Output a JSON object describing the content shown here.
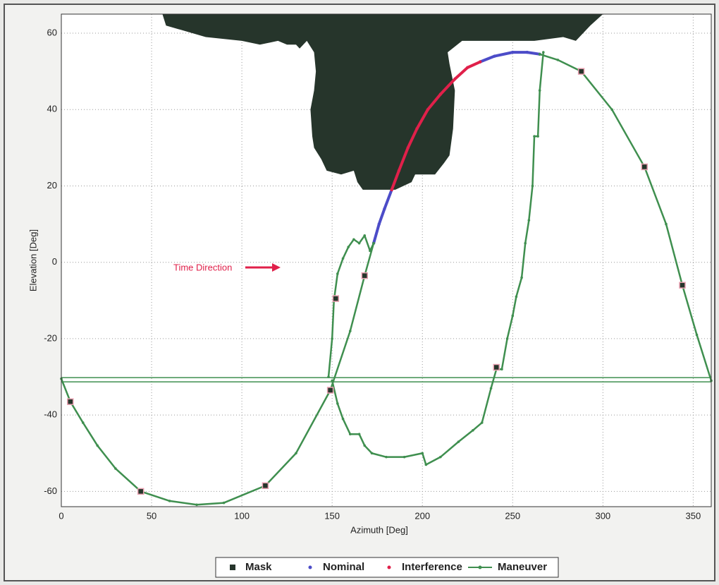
{
  "chart_data": {
    "type": "line",
    "xlabel": "Azimuth [Deg]",
    "ylabel": "Elevation [Deg]",
    "annotation": "Time Direction",
    "annotation_color": "#e0204a",
    "xlim": [
      0,
      360
    ],
    "ylim": [
      -64,
      65
    ],
    "xticks": [
      0,
      50,
      100,
      150,
      200,
      250,
      300,
      350
    ],
    "yticks": [
      -60,
      -40,
      -20,
      0,
      20,
      40,
      60
    ],
    "grid": true,
    "legend": "bottom",
    "hlines": {
      "color": "#3f8f4f",
      "values": [
        -30.2,
        -31.3
      ]
    },
    "series": [
      {
        "name": "Mask",
        "color": "#26352b",
        "marker": "square",
        "x": [
          5,
          44,
          113,
          149,
          152,
          168,
          241,
          288,
          323,
          344
        ],
        "values": [
          -36.5,
          -60,
          -58.5,
          -33.5,
          -9.5,
          -3.5,
          -27.5,
          50,
          25,
          -6
        ],
        "area_x": [
          56,
          58,
          80,
          100,
          110,
          120,
          125,
          130,
          132,
          136,
          140,
          141,
          140,
          138,
          139,
          140,
          144,
          147,
          155,
          162,
          164,
          167,
          185,
          194,
          196,
          207,
          212,
          215,
          217,
          218,
          215,
          214,
          222,
          240,
          262,
          278,
          285,
          293,
          300
        ],
        "area_y": [
          65,
          62,
          59,
          58,
          57,
          58,
          57,
          57,
          56,
          58,
          55,
          50,
          45,
          40,
          33,
          30,
          27,
          24,
          23,
          24,
          21,
          19,
          19,
          21,
          23,
          23,
          26,
          28,
          35,
          45,
          52,
          55,
          58,
          58,
          58,
          59,
          58,
          62,
          65
        ]
      },
      {
        "name": "Nominal",
        "color": "#4c4cc8",
        "marker": "dot",
        "x": [
          173,
          176,
          179,
          183,
          null,
          232,
          240,
          250,
          258,
          265
        ],
        "values": [
          5,
          10,
          14,
          19,
          null,
          52.5,
          54,
          55,
          55,
          54.5
        ]
      },
      {
        "name": "Interference",
        "color": "#e0204a",
        "marker": "dot",
        "x": [
          183,
          187,
          192,
          197,
          203,
          210,
          218,
          225,
          232
        ],
        "values": [
          19,
          24,
          30,
          35,
          40,
          44,
          48,
          51,
          52.5
        ]
      },
      {
        "name": "Maneuver",
        "color": "#3f8f4f",
        "marker": "line-dot",
        "x": [
          0,
          5,
          12,
          20,
          30,
          44,
          60,
          75,
          90,
          113,
          130,
          149,
          160,
          168,
          173,
          null,
          148,
          150,
          151,
          153,
          156,
          159,
          162,
          165,
          168,
          171,
          173,
          null,
          150,
          153,
          156,
          160,
          165,
          168,
          172,
          180,
          190,
          200,
          202,
          210,
          220,
          228,
          233,
          238,
          241,
          244,
          247,
          250,
          252,
          255,
          257,
          259,
          261,
          262,
          264,
          265,
          267,
          null,
          265,
          275,
          288,
          305,
          323,
          335,
          344,
          352,
          360
        ],
        "values": [
          -30.5,
          -36.5,
          -42,
          -48,
          -54,
          -60,
          -62.5,
          -63.5,
          -63,
          -58.5,
          -50,
          -33.5,
          -18,
          -3.5,
          5,
          null,
          -30,
          -20,
          -10,
          -3,
          1,
          4,
          6,
          5,
          7,
          3,
          5,
          null,
          -31,
          -37,
          -41,
          -45,
          -45,
          -48,
          -50,
          -51,
          -51,
          -50,
          -53,
          -51,
          -47,
          -44,
          -42,
          -33,
          -28,
          -28,
          -20,
          -14,
          -9,
          -4,
          5,
          11,
          20,
          33,
          33,
          45,
          55,
          null,
          54.5,
          53,
          50,
          40,
          25,
          10,
          -6,
          -19,
          -31
        ]
      }
    ]
  }
}
